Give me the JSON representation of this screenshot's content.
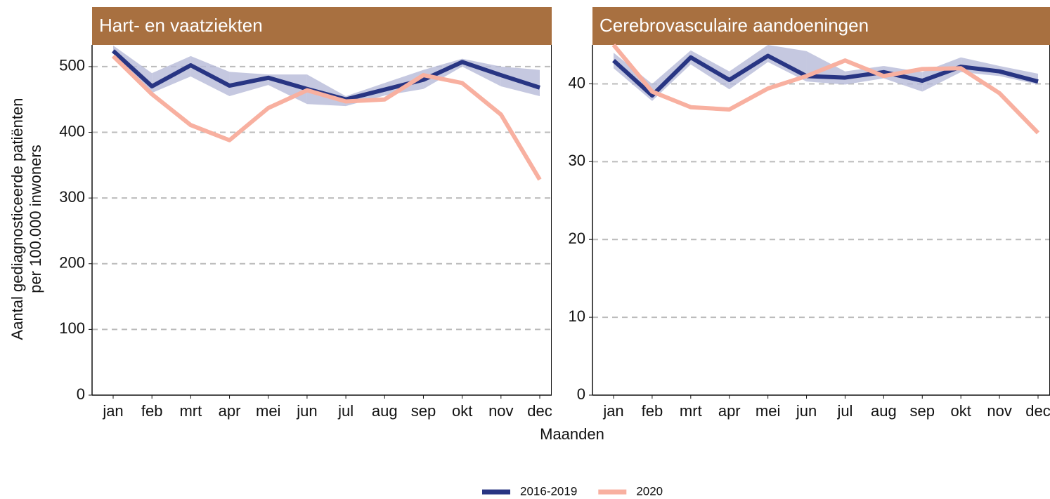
{
  "chart_data": [
    {
      "type": "line",
      "title": "Hart- en vaatziekten",
      "ylabel": [
        "Aantal gediagnosticeerde patiënten",
        "per 100.000 inwoners"
      ],
      "xlabel": "Maanden",
      "categories": [
        "jan",
        "feb",
        "mrt",
        "apr",
        "mei",
        "jun",
        "jul",
        "aug",
        "sep",
        "okt",
        "nov",
        "dec"
      ],
      "ylim": [
        0,
        533
      ],
      "yticks": [
        0,
        100,
        200,
        300,
        400,
        500
      ],
      "grid": true,
      "series": [
        {
          "name": "2016-2019",
          "color": "#283583",
          "band_color": "#b6bad8",
          "values": [
            524,
            470,
            502,
            471,
            483,
            466,
            450,
            465,
            480,
            507,
            487,
            468
          ],
          "lower": [
            520,
            460,
            485,
            455,
            472,
            443,
            440,
            456,
            466,
            500,
            470,
            455
          ],
          "upper": [
            532,
            490,
            516,
            492,
            488,
            488,
            455,
            475,
            495,
            512,
            500,
            495
          ]
        },
        {
          "name": "2020",
          "color": "#f8b0a0",
          "values": [
            516,
            458,
            411,
            388,
            437,
            464,
            447,
            450,
            487,
            475,
            427,
            328
          ]
        }
      ]
    },
    {
      "type": "line",
      "title": "Cerebrovasculaire aandoeningen",
      "categories": [
        "jan",
        "feb",
        "mrt",
        "apr",
        "mei",
        "jun",
        "jul",
        "aug",
        "sep",
        "okt",
        "nov",
        "dec"
      ],
      "ylim": [
        0,
        45
      ],
      "yticks": [
        0,
        10,
        20,
        30,
        40
      ],
      "grid": true,
      "series": [
        {
          "name": "2016-2019",
          "color": "#283583",
          "band_color": "#b6bad8",
          "values": [
            43.0,
            38.5,
            43.4,
            40.5,
            43.6,
            41.0,
            40.8,
            41.5,
            40.4,
            42.2,
            41.6,
            40.3
          ],
          "lower": [
            42.0,
            37.8,
            42.5,
            39.3,
            42.8,
            40.3,
            39.9,
            40.7,
            39.0,
            41.5,
            41.0,
            39.9
          ],
          "upper": [
            44.0,
            40.0,
            44.3,
            41.6,
            45.0,
            44.2,
            41.6,
            42.3,
            41.5,
            43.4,
            42.3,
            41.3
          ]
        },
        {
          "name": "2020",
          "color": "#f8b0a0",
          "values": [
            45.0,
            39.0,
            37.0,
            36.7,
            39.4,
            41.0,
            43.0,
            41.0,
            41.9,
            42.0,
            38.8,
            33.7
          ]
        }
      ]
    }
  ]
}
